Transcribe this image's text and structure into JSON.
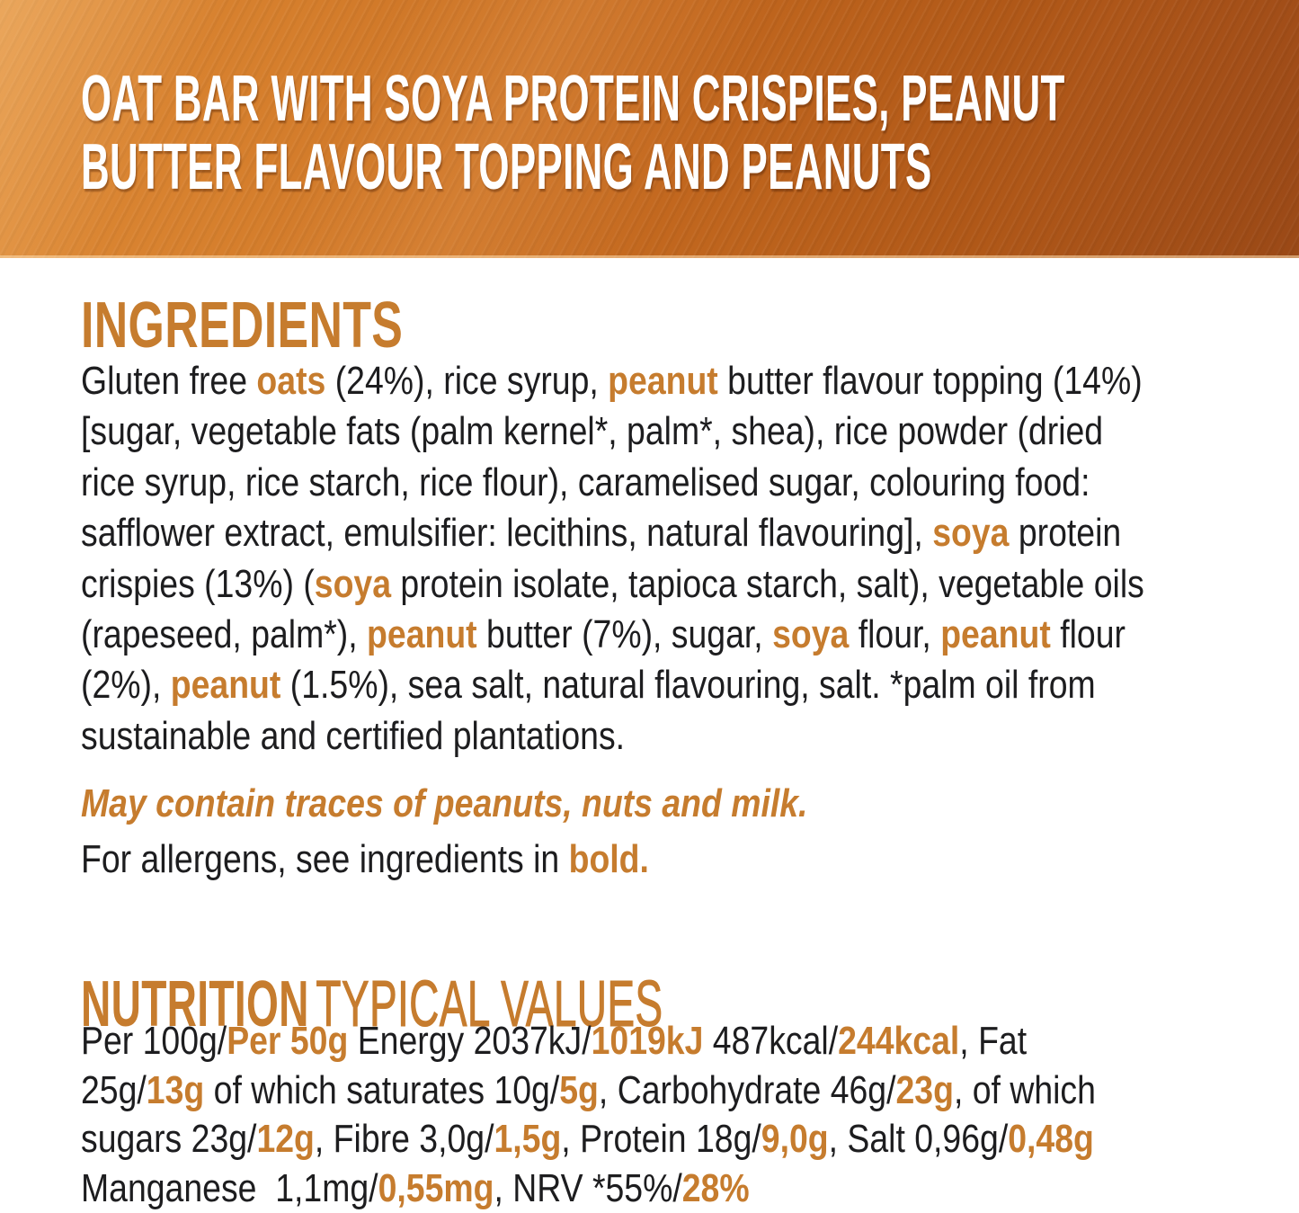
{
  "colors": {
    "accent": "#C67C2E",
    "text": "#1D1D1F",
    "banner_orange_light": "#DE8A36",
    "banner_orange_dark": "#A8511B",
    "title_white": "#FFFFFF"
  },
  "banner": {
    "title_lines": [
      "OAT BAR WITH SOYA PROTEIN CRISPIES, PEANUT",
      "BUTTER FLAVOUR TOPPING AND PEANUTS"
    ]
  },
  "ingredients": {
    "heading": "INGREDIENTS",
    "lines": [
      [
        {
          "t": "Gluten free "
        },
        {
          "t": "oats",
          "a": 1
        },
        {
          "t": " (24%), rice syrup, "
        },
        {
          "t": "peanut",
          "a": 1
        },
        {
          "t": " butter flavour topping (14%)"
        }
      ],
      [
        {
          "t": "[sugar, vegetable fats (palm kernel*, palm*, shea), rice powder (dried"
        }
      ],
      [
        {
          "t": "rice syrup, rice starch, rice flour), caramelised sugar, colouring food:"
        }
      ],
      [
        {
          "t": "safflower extract, emulsifier: lecithins, natural flavouring], "
        },
        {
          "t": "soya",
          "a": 1
        },
        {
          "t": " protein"
        }
      ],
      [
        {
          "t": "crispies (13%) ("
        },
        {
          "t": "soya",
          "a": 1
        },
        {
          "t": " protein isolate, tapioca starch, salt), vegetable oils"
        }
      ],
      [
        {
          "t": "(rapeseed, palm*), "
        },
        {
          "t": "peanut",
          "a": 1
        },
        {
          "t": " butter (7%), sugar, "
        },
        {
          "t": "soya",
          "a": 1
        },
        {
          "t": " flour, "
        },
        {
          "t": "peanut",
          "a": 1
        },
        {
          "t": " flour"
        }
      ],
      [
        {
          "t": "(2%), "
        },
        {
          "t": "peanut",
          "a": 1
        },
        {
          "t": " (1.5%), sea salt, natural flavouring, salt. *palm oil from"
        }
      ],
      [
        {
          "t": "sustainable and certified plantations."
        }
      ]
    ]
  },
  "allergens": {
    "may_contain": "May contain traces of peanuts, nuts and milk.",
    "note_segments": [
      {
        "t": "For allergens, see ingredients in "
      },
      {
        "t": "bold.",
        "a": 1
      }
    ]
  },
  "nutrition": {
    "heading_bold": "NUTRITION",
    "heading_rest": "TYPICAL VALUES",
    "lines": [
      [
        {
          "t": "Per 100g/"
        },
        {
          "t": "Per 50g",
          "a": 1
        },
        {
          "t": " Energy 2037kJ/"
        },
        {
          "t": "1019kJ",
          "a": 1
        },
        {
          "t": " 487kcal/"
        },
        {
          "t": "244kcal",
          "a": 1
        },
        {
          "t": ", Fat"
        }
      ],
      [
        {
          "t": "25g/"
        },
        {
          "t": "13g",
          "a": 1
        },
        {
          "t": " of which saturates 10g/"
        },
        {
          "t": "5g",
          "a": 1
        },
        {
          "t": ", Carbohydrate 46g/"
        },
        {
          "t": "23g",
          "a": 1
        },
        {
          "t": ", of which"
        }
      ],
      [
        {
          "t": "sugars 23g/"
        },
        {
          "t": "12g",
          "a": 1
        },
        {
          "t": ", Fibre 3,0g/"
        },
        {
          "t": "1,5g",
          "a": 1
        },
        {
          "t": ", Protein 18g/"
        },
        {
          "t": "9,0g",
          "a": 1
        },
        {
          "t": ", Salt 0,96g/"
        },
        {
          "t": "0,48g",
          "a": 1
        }
      ],
      [
        {
          "t": "Manganese  1,1mg/"
        },
        {
          "t": "0,55mg",
          "a": 1
        },
        {
          "t": ", NRV *55%/"
        },
        {
          "t": "28%",
          "a": 1
        }
      ]
    ]
  }
}
